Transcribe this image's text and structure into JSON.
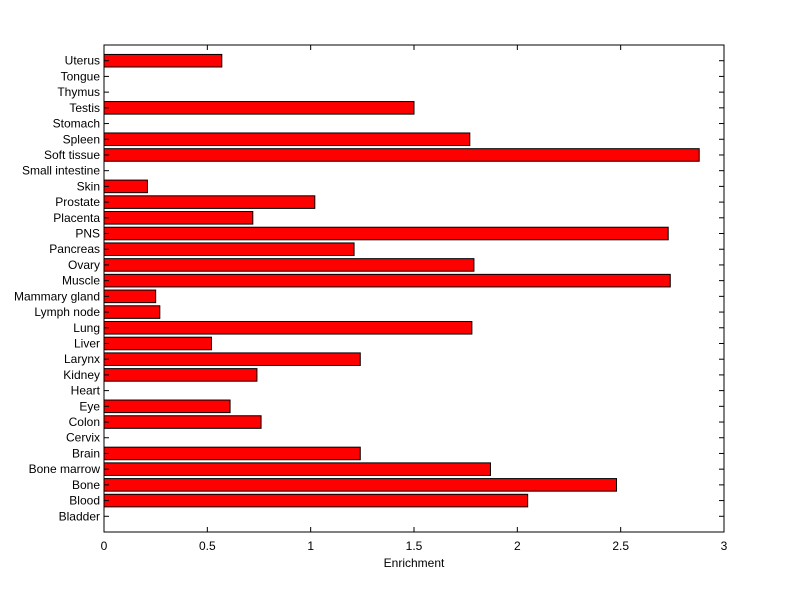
{
  "chart_data": {
    "type": "bar",
    "orientation": "horizontal",
    "xlabel": "Enrichment",
    "ylabel": "",
    "title": "",
    "xlim": [
      0,
      3
    ],
    "xticks": [
      "0",
      "0.5",
      "1",
      "1.5",
      "2",
      "2.5",
      "3"
    ],
    "grid": false,
    "bar_color": "#ff0000",
    "bar_edge_color": "#000000",
    "categories": [
      "Bladder",
      "Blood",
      "Bone",
      "Bone marrow",
      "Brain",
      "Cervix",
      "Colon",
      "Eye",
      "Heart",
      "Kidney",
      "Larynx",
      "Liver",
      "Lung",
      "Lymph node",
      "Mammary gland",
      "Muscle",
      "Ovary",
      "Pancreas",
      "PNS",
      "Placenta",
      "Prostate",
      "Skin",
      "Small intestine",
      "Soft tissue",
      "Spleen",
      "Stomach",
      "Testis",
      "Thymus",
      "Tongue",
      "Uterus"
    ],
    "values": [
      0,
      2.05,
      2.48,
      1.87,
      1.24,
      0,
      0.76,
      0.61,
      0,
      0.74,
      1.24,
      0.52,
      1.78,
      0.27,
      0.25,
      2.74,
      1.79,
      1.21,
      2.73,
      0.72,
      1.02,
      0.21,
      0,
      2.88,
      1.77,
      0,
      1.5,
      0,
      0,
      0.57
    ]
  }
}
